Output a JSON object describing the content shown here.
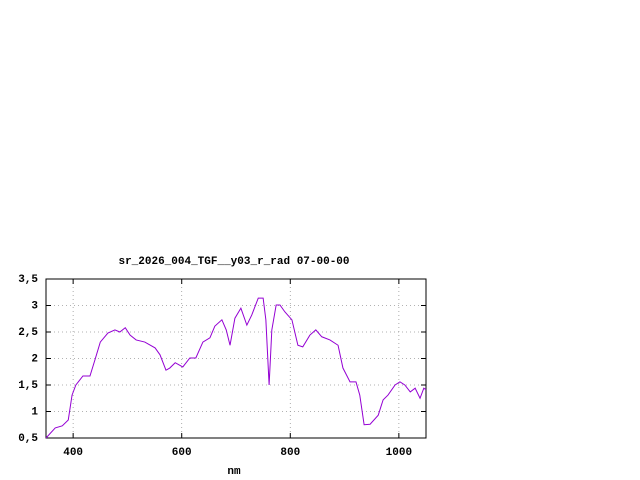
{
  "chart_data": {
    "type": "line",
    "title": "sr_2026_004_TGF__y03_r_rad 07-00-00",
    "xlabel": "nm",
    "xlim": [
      350,
      1050
    ],
    "xticks": [
      400,
      600,
      800,
      1000
    ],
    "ylim": [
      0.5,
      3.5
    ],
    "yticks": [
      {
        "value": 0.5,
        "label": "0,5"
      },
      1,
      {
        "value": 1.5,
        "label": "1,5"
      },
      2,
      {
        "value": 2.5,
        "label": "2,5"
      },
      3,
      {
        "value": 3.5,
        "label": "3,5"
      }
    ],
    "grid": true,
    "series": [
      {
        "color": "#9400d3",
        "x": [
          350,
          367,
          380,
          391,
          398,
          405,
          418,
          431,
          440,
          450,
          464,
          477,
          486,
          496,
          505,
          516,
          532,
          551,
          560,
          571,
          578,
          588,
          602,
          615,
          626,
          639,
          652,
          661,
          674,
          682,
          689,
          698,
          709,
          720,
          729,
          741,
          750,
          755,
          761,
          766,
          774,
          781,
          790,
          803,
          814,
          823,
          836,
          847,
          858,
          873,
          888,
          897,
          910,
          921,
          928,
          936,
          947,
          962,
          971,
          980,
          993,
          1002,
          1011,
          1021,
          1030,
          1039,
          1046,
          1050
        ],
        "values": [
          0.5,
          0.69,
          0.73,
          0.84,
          1.31,
          1.5,
          1.67,
          1.67,
          1.97,
          2.31,
          2.48,
          2.54,
          2.5,
          2.58,
          2.44,
          2.35,
          2.31,
          2.2,
          2.07,
          1.78,
          1.82,
          1.92,
          1.84,
          2.01,
          2.01,
          2.31,
          2.39,
          2.61,
          2.73,
          2.54,
          2.25,
          2.76,
          2.95,
          2.63,
          2.82,
          3.14,
          3.14,
          2.73,
          1.5,
          2.54,
          3.01,
          3.01,
          2.88,
          2.73,
          2.25,
          2.22,
          2.44,
          2.54,
          2.41,
          2.35,
          2.25,
          1.82,
          1.56,
          1.56,
          1.31,
          0.75,
          0.76,
          0.93,
          1.22,
          1.31,
          1.5,
          1.56,
          1.5,
          1.37,
          1.44,
          1.25,
          1.44,
          1.41
        ]
      }
    ]
  }
}
